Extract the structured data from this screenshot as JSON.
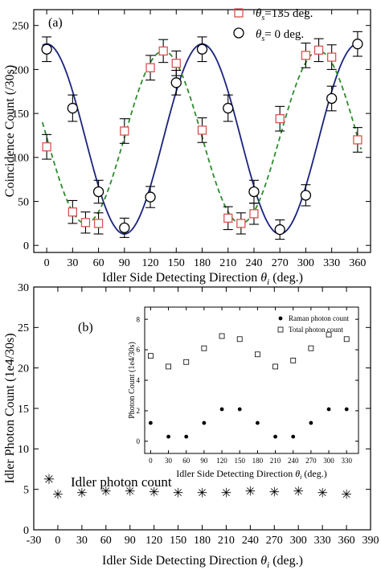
{
  "chart_data": [
    {
      "panel_label": "(a)",
      "type": "scatter",
      "xlabel": "Idler Side Detecting Direction",
      "xlabel_symbol": "θ",
      "xlabel_subscript": "i",
      "xlabel_unit": "(deg.)",
      "ylabel": "Coincidence Count (/30s)",
      "xlim": [
        -15,
        375
      ],
      "ylim": [
        -8,
        268
      ],
      "xticks": [
        0,
        30,
        60,
        90,
        120,
        150,
        180,
        210,
        240,
        270,
        300,
        330,
        360
      ],
      "yticks": [
        0,
        50,
        100,
        150,
        200,
        250
      ],
      "legend_position": "top-right",
      "series": [
        {
          "name_symbol": "θ",
          "name_subscript": "s",
          "name_suffix": "=135 deg.",
          "marker": "square",
          "color": "#d9534f",
          "fit_color": "#2e8b2e",
          "fit_style": "dashed",
          "points": [
            {
              "x": 0,
              "y": 112,
              "err": 14
            },
            {
              "x": 30,
              "y": 38,
              "err": 13
            },
            {
              "x": 45,
              "y": 26,
              "err": 12
            },
            {
              "x": 60,
              "y": 25,
              "err": 12
            },
            {
              "x": 90,
              "y": 130,
              "err": 14
            },
            {
              "x": 120,
              "y": 202,
              "err": 14
            },
            {
              "x": 135,
              "y": 221,
              "err": 13
            },
            {
              "x": 150,
              "y": 207,
              "err": 14
            },
            {
              "x": 180,
              "y": 131,
              "err": 14
            },
            {
              "x": 210,
              "y": 31,
              "err": 13
            },
            {
              "x": 225,
              "y": 25,
              "err": 12
            },
            {
              "x": 240,
              "y": 36,
              "err": 12
            },
            {
              "x": 270,
              "y": 144,
              "err": 14
            },
            {
              "x": 300,
              "y": 216,
              "err": 14
            },
            {
              "x": 315,
              "y": 222,
              "err": 13
            },
            {
              "x": 330,
              "y": 214,
              "err": 14
            },
            {
              "x": 360,
              "y": 120,
              "err": 14
            }
          ]
        },
        {
          "name_symbol": "θ",
          "name_subscript": "s",
          "name_suffix": "= 0 deg.",
          "marker": "circle",
          "color": "#000000",
          "fit_color": "#1a237e",
          "fit_style": "solid",
          "points": [
            {
              "x": 0,
              "y": 223,
              "err": 14
            },
            {
              "x": 30,
              "y": 156,
              "err": 15
            },
            {
              "x": 60,
              "y": 61,
              "err": 13
            },
            {
              "x": 90,
              "y": 20,
              "err": 11
            },
            {
              "x": 120,
              "y": 55,
              "err": 12
            },
            {
              "x": 150,
              "y": 185,
              "err": 14
            },
            {
              "x": 180,
              "y": 223,
              "err": 14
            },
            {
              "x": 210,
              "y": 156,
              "err": 15
            },
            {
              "x": 240,
              "y": 61,
              "err": 13
            },
            {
              "x": 270,
              "y": 18,
              "err": 11
            },
            {
              "x": 300,
              "y": 57,
              "err": 12
            },
            {
              "x": 330,
              "y": 167,
              "err": 14
            },
            {
              "x": 360,
              "y": 229,
              "err": 14
            }
          ]
        }
      ]
    },
    {
      "panel_label": "(b)",
      "type": "scatter",
      "xlabel": "Idler Side Detecting Direction",
      "xlabel_symbol": "θ",
      "xlabel_subscript": "i",
      "xlabel_unit": "(deg.)",
      "ylabel": "Idler Photon Count (1e4/30s)",
      "xlim": [
        -30,
        390
      ],
      "ylim": [
        0,
        30
      ],
      "xticks": [
        -30,
        0,
        30,
        60,
        90,
        120,
        150,
        180,
        210,
        240,
        270,
        300,
        330,
        360,
        390
      ],
      "yticks": [
        0,
        5,
        10,
        15,
        20,
        25,
        30
      ],
      "series": [
        {
          "name": "Idler photon count",
          "marker": "asterisk",
          "x": [
            0,
            30,
            60,
            90,
            120,
            150,
            180,
            210,
            240,
            270,
            300,
            330,
            360
          ],
          "y": [
            4.4,
            4.6,
            4.8,
            4.8,
            4.7,
            4.6,
            4.6,
            4.6,
            4.8,
            4.7,
            4.8,
            4.6,
            4.4
          ]
        }
      ],
      "inset": {
        "type": "scatter",
        "xlabel": "Idler Side Detecting Direction",
        "xlabel_symbol": "θ",
        "xlabel_subscript": "i",
        "xlabel_unit": "(deg.)",
        "ylabel": "Photon Count (1e4/30s)",
        "xlim": [
          -10,
          350
        ],
        "ylim": [
          -0.8,
          8.8
        ],
        "xticks": [
          0,
          30,
          60,
          90,
          120,
          150,
          180,
          210,
          240,
          270,
          300,
          330
        ],
        "yticks": [
          0,
          2,
          4,
          6,
          8
        ],
        "series": [
          {
            "name": "Raman photon count",
            "marker": "filled-circle",
            "x": [
              0,
              30,
              60,
              90,
              120,
              150,
              180,
              210,
              240,
              270,
              300,
              330
            ],
            "y": [
              1.2,
              0.3,
              0.3,
              1.2,
              2.1,
              2.1,
              1.2,
              0.3,
              0.3,
              1.2,
              2.1,
              2.1
            ]
          },
          {
            "name": "Total photon count",
            "marker": "open-square",
            "x": [
              0,
              30,
              60,
              90,
              120,
              150,
              180,
              210,
              240,
              270,
              300,
              330
            ],
            "y": [
              5.6,
              4.9,
              5.2,
              6.1,
              6.9,
              6.7,
              5.7,
              4.9,
              5.3,
              6.1,
              7.0,
              6.7
            ]
          }
        ]
      }
    }
  ]
}
